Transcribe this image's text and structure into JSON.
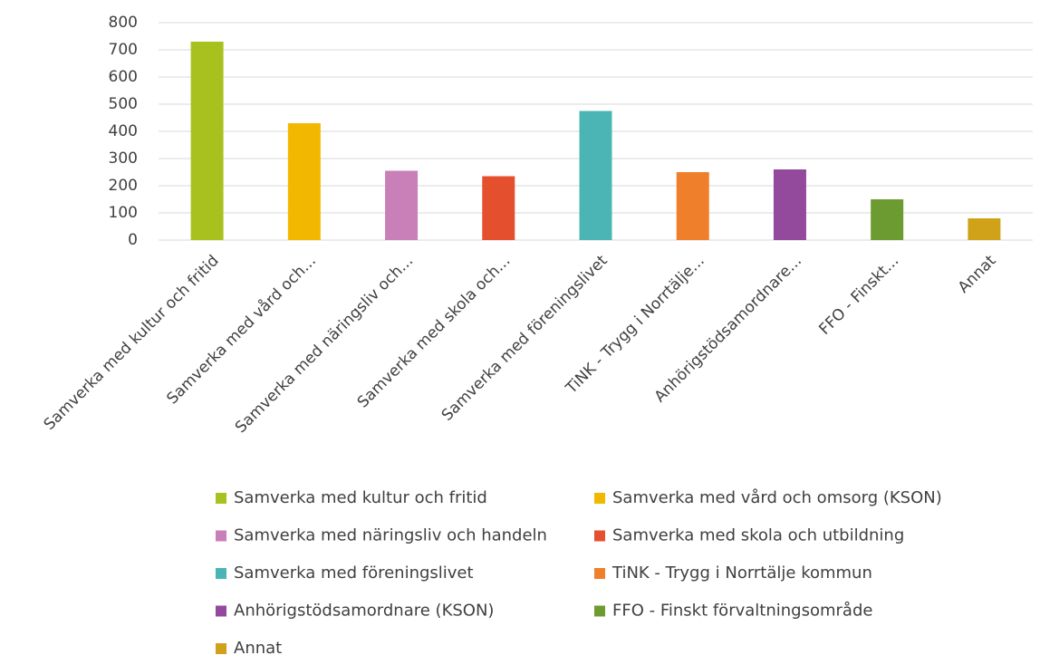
{
  "chart_data": {
    "type": "bar",
    "categories": [
      "Samverka med kultur och fritid",
      "Samverka med vård och...",
      "Samverka med näringsliv och...",
      "Samverka med skola och...",
      "Samverka med föreningslivet",
      "TiNK - Trygg i Norrtälje...",
      "Anhörigstödsamordnare...",
      "FFO - Finskt...",
      "Annat"
    ],
    "values": [
      730,
      430,
      255,
      235,
      475,
      250,
      260,
      150,
      80
    ],
    "colors": [
      "#a9c11f",
      "#f2b800",
      "#c97fb7",
      "#e4502e",
      "#4bb5b5",
      "#f07f2b",
      "#944a9c",
      "#6c9b32",
      "#d0a21a"
    ],
    "legend_labels": [
      "Samverka med kultur och fritid",
      "Samverka med vård och omsorg (KSON)",
      "Samverka med näringsliv och handeln",
      "Samverka med skola och utbildning",
      "Samverka med föreningslivet",
      "TiNK - Trygg i Norrtälje kommun",
      "Anhörigstödsamordnare (KSON)",
      "FFO - Finskt förvaltningsområde",
      "Annat"
    ],
    "ylim": [
      0,
      800
    ],
    "yticks": [
      0,
      100,
      200,
      300,
      400,
      500,
      600,
      700,
      800
    ],
    "grid": true
  }
}
